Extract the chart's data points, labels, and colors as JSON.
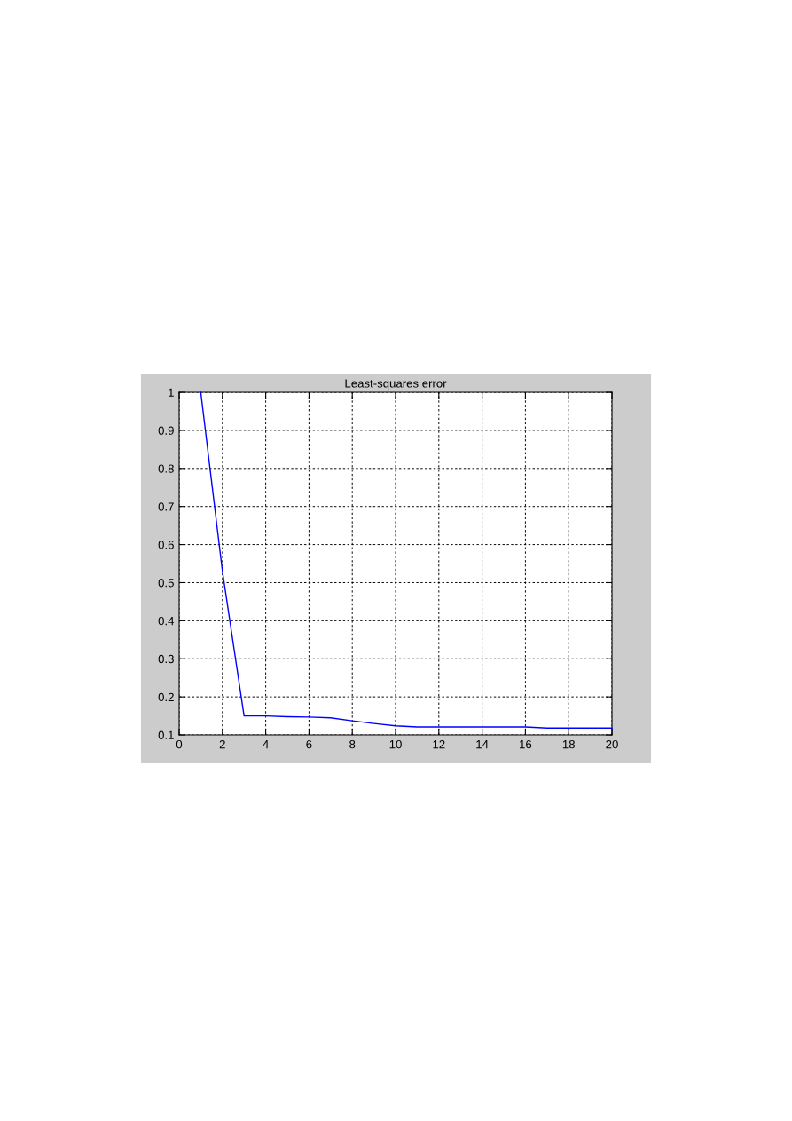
{
  "chart_data": {
    "type": "line",
    "title": "Least-squares error",
    "x": [
      1,
      2,
      3,
      4,
      5,
      6,
      7,
      8,
      9,
      10,
      11,
      12,
      13,
      14,
      15,
      16,
      17,
      18,
      19,
      20
    ],
    "series": [
      {
        "color": "#0000ff",
        "values": [
          1.0,
          0.53,
          0.15,
          0.15,
          0.148,
          0.147,
          0.145,
          0.137,
          0.13,
          0.124,
          0.121,
          0.121,
          0.121,
          0.121,
          0.121,
          0.121,
          0.118,
          0.118,
          0.118,
          0.118
        ]
      }
    ],
    "xlim": [
      0,
      20
    ],
    "ylim": [
      0.1,
      1
    ],
    "xticks": [
      0,
      2,
      4,
      6,
      8,
      10,
      12,
      14,
      16,
      18,
      20
    ],
    "yticks": [
      0.1,
      0.2,
      0.3,
      0.4,
      0.5,
      0.6,
      0.7,
      0.8,
      0.9,
      1
    ],
    "grid": true,
    "line_style": "solid"
  }
}
